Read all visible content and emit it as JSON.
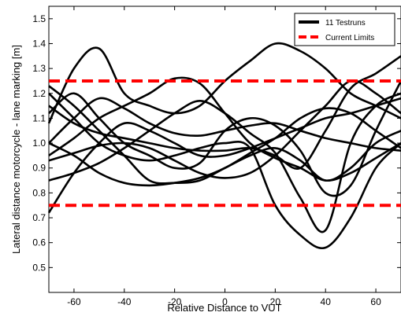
{
  "chart_data": {
    "type": "line",
    "title": "",
    "xlabel": "Relative Distance to VUT",
    "ylabel": "Lateral distance motorcycle - lane marking [m]",
    "xlim": [
      -70,
      70
    ],
    "ylim": [
      0.4,
      1.55
    ],
    "xticks": [
      -60,
      -40,
      -20,
      0,
      20,
      40,
      60
    ],
    "yticks": [
      0.5,
      0.6,
      0.7,
      0.8,
      0.9,
      1.0,
      1.1,
      1.2,
      1.3,
      1.4,
      1.5
    ],
    "grid": false,
    "legend": {
      "position": "top-right",
      "entries": [
        {
          "label": "11 Testruns",
          "color": "#000000",
          "style": "solid"
        },
        {
          "label": "Current Limits",
          "color": "#ff0000",
          "style": "dashed"
        }
      ]
    },
    "limits": [
      {
        "y": 1.25,
        "color": "#ff0000"
      },
      {
        "y": 0.75,
        "color": "#ff0000"
      }
    ],
    "series": [
      {
        "x": [
          -70,
          -60,
          -50,
          -40,
          -30,
          -20,
          -10,
          0,
          10,
          20,
          30,
          40,
          50,
          60,
          70
        ],
        "y": [
          1.0,
          1.1,
          1.18,
          1.14,
          1.08,
          1.04,
          1.03,
          1.05,
          1.07,
          1.08,
          1.05,
          1.02,
          1.0,
          0.98,
          0.97
        ]
      },
      {
        "x": [
          -70,
          -60,
          -50,
          -40,
          -30,
          -20,
          -10,
          0,
          10,
          20,
          30,
          40,
          50,
          60,
          70
        ],
        "y": [
          1.2,
          1.1,
          1.0,
          0.95,
          0.93,
          0.95,
          0.98,
          1.0,
          0.98,
          0.75,
          0.63,
          0.58,
          0.7,
          0.9,
          1.0
        ]
      },
      {
        "x": [
          -70,
          -60,
          -50,
          -40,
          -30,
          -20,
          -10,
          0,
          10,
          20,
          30,
          40,
          50,
          60,
          70
        ],
        "y": [
          1.08,
          1.3,
          1.38,
          1.2,
          1.15,
          1.12,
          1.15,
          1.25,
          1.33,
          1.4,
          1.37,
          1.3,
          1.2,
          1.15,
          1.1
        ]
      },
      {
        "x": [
          -70,
          -60,
          -50,
          -40,
          -30,
          -20,
          -10,
          0,
          10,
          20,
          30,
          40,
          50,
          60,
          70
        ],
        "y": [
          0.95,
          1.02,
          1.1,
          1.15,
          1.2,
          1.26,
          1.24,
          1.12,
          1.0,
          0.94,
          0.9,
          0.85,
          0.88,
          0.94,
          1.0
        ]
      },
      {
        "x": [
          -70,
          -60,
          -50,
          -40,
          -30,
          -20,
          -10,
          0,
          10,
          20,
          30,
          40,
          50,
          60,
          70
        ],
        "y": [
          0.72,
          0.88,
          1.0,
          1.08,
          1.05,
          1.0,
          0.95,
          0.95,
          0.98,
          1.02,
          1.06,
          1.1,
          1.12,
          1.15,
          1.18
        ]
      },
      {
        "x": [
          -70,
          -60,
          -50,
          -40,
          -30,
          -20,
          -10,
          0,
          10,
          20,
          30,
          40,
          50,
          60,
          70
        ],
        "y": [
          1.23,
          1.15,
          1.05,
          0.95,
          0.85,
          0.84,
          0.85,
          0.9,
          0.95,
          0.98,
          0.93,
          0.85,
          0.9,
          1.0,
          1.05
        ]
      },
      {
        "x": [
          -70,
          -60,
          -50,
          -40,
          -30,
          -20,
          -10,
          0,
          10,
          20,
          30,
          40,
          50,
          60,
          70
        ],
        "y": [
          0.85,
          0.88,
          0.92,
          0.98,
          1.05,
          1.12,
          1.17,
          1.12,
          1.04,
          0.96,
          0.78,
          0.65,
          1.0,
          1.15,
          1.2
        ]
      },
      {
        "x": [
          -70,
          -60,
          -50,
          -40,
          -30,
          -20,
          -10,
          0,
          10,
          20,
          30,
          40,
          50,
          60,
          70
        ],
        "y": [
          1.15,
          1.08,
          1.04,
          1.02,
          1.0,
          0.98,
          0.97,
          0.97,
          0.98,
          0.95,
          0.9,
          1.05,
          1.22,
          1.28,
          1.35
        ]
      },
      {
        "x": [
          -70,
          -60,
          -50,
          -40,
          -30,
          -20,
          -10,
          0,
          10,
          20,
          30,
          40,
          50,
          60,
          70
        ],
        "y": [
          0.93,
          0.96,
          0.99,
          1.0,
          0.98,
          0.93,
          0.88,
          0.86,
          0.88,
          0.95,
          1.05,
          1.15,
          1.25,
          1.2,
          1.12
        ]
      },
      {
        "x": [
          -70,
          -60,
          -50,
          -40,
          -30,
          -20,
          -10,
          0,
          10,
          20,
          30,
          40,
          50,
          60,
          70
        ],
        "y": [
          1.0,
          0.95,
          0.88,
          0.84,
          0.83,
          0.84,
          0.86,
          0.9,
          0.96,
          1.02,
          1.1,
          1.14,
          1.12,
          1.05,
          0.98
        ]
      },
      {
        "x": [
          -70,
          -60,
          -50,
          -40,
          -30,
          -20,
          -10,
          0,
          10,
          20,
          30,
          40,
          50,
          60,
          70
        ],
        "y": [
          1.12,
          1.2,
          1.1,
          1.0,
          0.95,
          0.9,
          0.92,
          1.05,
          1.1,
          1.07,
          0.97,
          0.8,
          0.83,
          1.05,
          1.25
        ]
      }
    ]
  }
}
